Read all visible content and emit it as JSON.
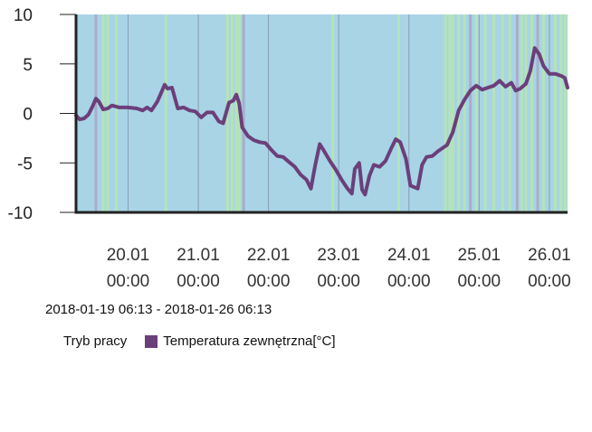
{
  "chart_data": {
    "type": "line",
    "x_start": "2018-01-19 06:13",
    "ylim": [
      -10,
      10
    ],
    "yticks": [
      10,
      5,
      0,
      -5,
      -10
    ],
    "xticks": [
      {
        "x": "2018-01-20 00:00",
        "day": "20.01",
        "time": "00:00"
      },
      {
        "x": "2018-01-21 00:00",
        "day": "21.01",
        "time": "00:00"
      },
      {
        "x": "2018-01-22 00:00",
        "day": "22.01",
        "time": "00:00"
      },
      {
        "x": "2018-01-23 00:00",
        "day": "23.01",
        "time": "00:00"
      },
      {
        "x": "2018-01-24 00:00",
        "day": "24.01",
        "time": "00:00"
      },
      {
        "x": "2018-01-25 00:00",
        "day": "25.01",
        "time": "00:00"
      },
      {
        "x": "2018-01-26 00:00",
        "day": "26.01",
        "time": "00:00"
      }
    ],
    "range_label": "2018-01-19 06:13 - 2018-01-26 06:13",
    "colors": {
      "background_mode": "#a8d4e6",
      "band_mode_a": "#b6e6b0",
      "band_mode_b": "#a9a9c9",
      "vertical_grid": "#8c9cb0",
      "axis": "#222222",
      "line": "#6b3f7a"
    },
    "mode_series": {
      "name": "Tryb pracy",
      "bands": [
        {
          "x": "2018-01-19 13:00",
          "kind": "b"
        },
        {
          "x": "2018-01-19 15:30",
          "kind": "a"
        },
        {
          "x": "2018-01-19 17:00",
          "kind": "a"
        },
        {
          "x": "2018-01-19 20:00",
          "kind": "a"
        },
        {
          "x": "2018-01-20 13:00",
          "kind": "a"
        },
        {
          "x": "2018-01-21 10:00",
          "kind": "a"
        },
        {
          "x": "2018-01-21 11:30",
          "kind": "a"
        },
        {
          "x": "2018-01-21 13:00",
          "kind": "a"
        },
        {
          "x": "2018-01-21 14:00",
          "kind": "a"
        },
        {
          "x": "2018-01-21 15:30",
          "kind": "b"
        },
        {
          "x": "2018-01-22 22:00",
          "kind": "a"
        },
        {
          "x": "2018-01-23 20:30",
          "kind": "a"
        },
        {
          "x": "2018-01-24 12:30",
          "kind": "a"
        },
        {
          "x": "2018-01-24 14:00",
          "kind": "a"
        },
        {
          "x": "2018-01-24 15:00",
          "kind": "a"
        },
        {
          "x": "2018-01-24 17:00",
          "kind": "a"
        },
        {
          "x": "2018-01-24 19:00",
          "kind": "a"
        },
        {
          "x": "2018-01-24 21:00",
          "kind": "b"
        },
        {
          "x": "2018-01-24 23:00",
          "kind": "a"
        },
        {
          "x": "2018-01-25 02:00",
          "kind": "a"
        },
        {
          "x": "2018-01-25 05:00",
          "kind": "a"
        },
        {
          "x": "2018-01-25 08:00",
          "kind": "a"
        },
        {
          "x": "2018-01-25 10:30",
          "kind": "a"
        },
        {
          "x": "2018-01-25 13:00",
          "kind": "b"
        },
        {
          "x": "2018-01-25 14:30",
          "kind": "a"
        },
        {
          "x": "2018-01-25 16:00",
          "kind": "a"
        },
        {
          "x": "2018-01-25 18:00",
          "kind": "a"
        },
        {
          "x": "2018-01-25 20:00",
          "kind": "b"
        },
        {
          "x": "2018-01-25 22:00",
          "kind": "a"
        },
        {
          "x": "2018-01-26 02:00",
          "kind": "a"
        },
        {
          "x": "2018-01-26 04:00",
          "kind": "a"
        },
        {
          "x": "2018-01-26 05:30",
          "kind": "a"
        }
      ]
    },
    "series": [
      {
        "name": "Temperatura zewnętrzna[°C]",
        "points": [
          [
            "2018-01-19 06:13",
            -0.2
          ],
          [
            "2018-01-19 07:30",
            -0.6
          ],
          [
            "2018-01-19 09:00",
            -0.5
          ],
          [
            "2018-01-19 10:30",
            -0.1
          ],
          [
            "2018-01-19 12:00",
            0.8
          ],
          [
            "2018-01-19 13:00",
            1.5
          ],
          [
            "2018-01-19 14:00",
            1.2
          ],
          [
            "2018-01-19 15:30",
            0.4
          ],
          [
            "2018-01-19 17:00",
            0.5
          ],
          [
            "2018-01-19 18:30",
            0.8
          ],
          [
            "2018-01-19 21:00",
            0.6
          ],
          [
            "2018-01-20 00:00",
            0.6
          ],
          [
            "2018-01-20 03:00",
            0.5
          ],
          [
            "2018-01-20 05:00",
            0.3
          ],
          [
            "2018-01-20 06:30",
            0.6
          ],
          [
            "2018-01-20 08:00",
            0.3
          ],
          [
            "2018-01-20 10:00",
            1.2
          ],
          [
            "2018-01-20 11:30",
            2.2
          ],
          [
            "2018-01-20 12:30",
            2.9
          ],
          [
            "2018-01-20 13:30",
            2.5
          ],
          [
            "2018-01-20 15:00",
            2.6
          ],
          [
            "2018-01-20 17:00",
            0.5
          ],
          [
            "2018-01-20 19:00",
            0.6
          ],
          [
            "2018-01-20 21:00",
            0.3
          ],
          [
            "2018-01-20 23:00",
            0.2
          ],
          [
            "2018-01-21 01:00",
            -0.4
          ],
          [
            "2018-01-21 03:00",
            0.1
          ],
          [
            "2018-01-21 05:00",
            0.1
          ],
          [
            "2018-01-21 07:00",
            -0.8
          ],
          [
            "2018-01-21 08:30",
            -1.0
          ],
          [
            "2018-01-21 10:30",
            1.1
          ],
          [
            "2018-01-21 12:00",
            1.3
          ],
          [
            "2018-01-21 13:00",
            1.9
          ],
          [
            "2018-01-21 14:00",
            1.0
          ],
          [
            "2018-01-21 15:00",
            -1.4
          ],
          [
            "2018-01-21 17:00",
            -2.3
          ],
          [
            "2018-01-21 19:00",
            -2.7
          ],
          [
            "2018-01-21 21:00",
            -2.9
          ],
          [
            "2018-01-21 23:00",
            -3.0
          ],
          [
            "2018-01-22 01:00",
            -3.7
          ],
          [
            "2018-01-22 03:00",
            -4.3
          ],
          [
            "2018-01-22 05:00",
            -4.4
          ],
          [
            "2018-01-22 07:00",
            -4.9
          ],
          [
            "2018-01-22 09:00",
            -5.4
          ],
          [
            "2018-01-22 11:00",
            -6.2
          ],
          [
            "2018-01-22 13:00",
            -6.7
          ],
          [
            "2018-01-22 14:30",
            -7.6
          ],
          [
            "2018-01-22 16:00",
            -5.2
          ],
          [
            "2018-01-22 17:30",
            -3.1
          ],
          [
            "2018-01-22 19:00",
            -3.8
          ],
          [
            "2018-01-22 21:00",
            -4.8
          ],
          [
            "2018-01-22 23:00",
            -5.7
          ],
          [
            "2018-01-23 01:00",
            -6.7
          ],
          [
            "2018-01-23 03:00",
            -7.6
          ],
          [
            "2018-01-23 04:30",
            -8.1
          ],
          [
            "2018-01-23 05:30",
            -5.6
          ],
          [
            "2018-01-23 07:00",
            -5.0
          ],
          [
            "2018-01-23 08:00",
            -7.7
          ],
          [
            "2018-01-23 09:00",
            -8.2
          ],
          [
            "2018-01-23 10:30",
            -6.3
          ],
          [
            "2018-01-23 12:00",
            -5.2
          ],
          [
            "2018-01-23 14:00",
            -5.4
          ],
          [
            "2018-01-23 16:00",
            -4.8
          ],
          [
            "2018-01-23 18:00",
            -3.5
          ],
          [
            "2018-01-23 19:30",
            -2.6
          ],
          [
            "2018-01-23 21:00",
            -2.9
          ],
          [
            "2018-01-23 23:00",
            -4.6
          ],
          [
            "2018-01-24 00:30",
            -7.3
          ],
          [
            "2018-01-24 03:00",
            -7.6
          ],
          [
            "2018-01-24 04:30",
            -5.2
          ],
          [
            "2018-01-24 06:00",
            -4.4
          ],
          [
            "2018-01-24 08:00",
            -4.3
          ],
          [
            "2018-01-24 10:00",
            -3.8
          ],
          [
            "2018-01-24 13:00",
            -3.2
          ],
          [
            "2018-01-24 15:00",
            -1.9
          ],
          [
            "2018-01-24 17:00",
            0.3
          ],
          [
            "2018-01-24 19:00",
            1.4
          ],
          [
            "2018-01-24 21:00",
            2.3
          ],
          [
            "2018-01-24 23:00",
            2.8
          ],
          [
            "2018-01-25 01:00",
            2.4
          ],
          [
            "2018-01-25 03:00",
            2.6
          ],
          [
            "2018-01-25 05:00",
            2.8
          ],
          [
            "2018-01-25 07:00",
            3.3
          ],
          [
            "2018-01-25 09:00",
            2.7
          ],
          [
            "2018-01-25 11:00",
            3.1
          ],
          [
            "2018-01-25 12:30",
            2.3
          ],
          [
            "2018-01-25 14:00",
            2.5
          ],
          [
            "2018-01-25 16:00",
            3.0
          ],
          [
            "2018-01-25 17:30",
            4.3
          ],
          [
            "2018-01-25 19:00",
            6.6
          ],
          [
            "2018-01-25 20:30",
            6.0
          ],
          [
            "2018-01-25 22:00",
            4.8
          ],
          [
            "2018-01-26 00:00",
            4.0
          ],
          [
            "2018-01-26 02:00",
            4.0
          ],
          [
            "2018-01-26 04:00",
            3.8
          ],
          [
            "2018-01-26 05:15",
            3.6
          ],
          [
            "2018-01-26 06:13",
            2.6
          ]
        ]
      }
    ]
  },
  "legend": {
    "mode_label": "Tryb pracy",
    "series_label": "Temperatura zewnętrzna[°C]",
    "series_color": "#6b3f7a"
  }
}
